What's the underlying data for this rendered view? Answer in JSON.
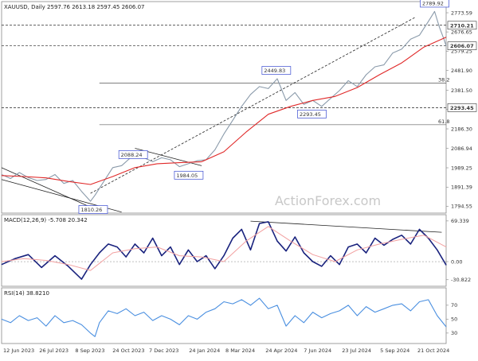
{
  "chart_data": [
    {
      "type": "line",
      "panel": "price",
      "title": "XAUUSD, Daily  2597.76 2613.18 2597.45 2606.07",
      "watermark": "ActionForex.com",
      "ylim": [
        1760,
        2830
      ],
      "y_ticks": [
        "2773.59",
        "2676.65",
        "2579.25",
        "2481.90",
        "2381.50",
        "2284.05",
        "2186.30",
        "2086.94",
        "1989.25",
        "1891.39",
        "1794.55"
      ],
      "y_tick_values": [
        2773.59,
        2676.65,
        2579.25,
        2481.9,
        2381.5,
        2284.05,
        2186.3,
        2086.94,
        1989.25,
        1891.39,
        1794.55
      ],
      "price_tags": [
        {
          "label": "2710.21",
          "value": 2710.21
        },
        {
          "label": "2606.07",
          "value": 2606.07
        },
        {
          "label": "2293.45",
          "value": 2293.45
        }
      ],
      "fib_levels": [
        {
          "label": "38.2",
          "value": 2417
        },
        {
          "label": "61.8",
          "value": 2207
        }
      ],
      "annotations": [
        {
          "label": "2789.92",
          "x": 97.4,
          "value": 2789.92
        },
        {
          "label": "2449.83",
          "x": 61.8,
          "value": 2449.83
        },
        {
          "label": "2293.45",
          "x": 69.8,
          "value": 2293.45
        },
        {
          "label": "2088.24",
          "x": 29.6,
          "value": 2088.24
        },
        {
          "label": "1984.05",
          "x": 42.1,
          "value": 1984.05
        },
        {
          "label": "1810.26",
          "x": 20.6,
          "value": 1810.26
        }
      ],
      "series": [
        {
          "name": "Close",
          "color": "#8a9aaa",
          "x": [
            0,
            2,
            4,
            6,
            8,
            10,
            12,
            14,
            16,
            18,
            20,
            21,
            23,
            25,
            27,
            29,
            30,
            32,
            34,
            36,
            38,
            40,
            42,
            44,
            46,
            48,
            50,
            52,
            54,
            56,
            58,
            60,
            62,
            64,
            66,
            68,
            70,
            72,
            74,
            76,
            78,
            80,
            82,
            84,
            86,
            88,
            90,
            92,
            94,
            96,
            97.4,
            98.5,
            99.5,
            100
          ],
          "values": [
            1955,
            1935,
            1965,
            1940,
            1925,
            1930,
            1955,
            1910,
            1925,
            1870,
            1820,
            1850,
            1920,
            1990,
            2000,
            2040,
            2060,
            2040,
            2020,
            2040,
            2030,
            1995,
            2010,
            2025,
            2030,
            2080,
            2160,
            2230,
            2300,
            2360,
            2400,
            2390,
            2440,
            2330,
            2370,
            2310,
            2330,
            2300,
            2340,
            2380,
            2430,
            2400,
            2460,
            2500,
            2510,
            2570,
            2590,
            2640,
            2660,
            2730,
            2780,
            2700,
            2640,
            2606
          ]
        },
        {
          "name": "MA",
          "color": "#e02828",
          "x": [
            0,
            5,
            10,
            15,
            20,
            25,
            30,
            35,
            40,
            45,
            50,
            55,
            60,
            65,
            70,
            75,
            80,
            85,
            90,
            95,
            100
          ],
          "values": [
            1950,
            1945,
            1938,
            1920,
            1905,
            1945,
            1990,
            2010,
            2015,
            2020,
            2070,
            2170,
            2260,
            2300,
            2330,
            2350,
            2395,
            2460,
            2520,
            2600,
            2650
          ]
        }
      ],
      "trendlines": [
        {
          "x": [
            0,
            22
          ],
          "values": [
            1990,
            1770
          ]
        },
        {
          "x": [
            0,
            27
          ],
          "values": [
            1930,
            1765
          ]
        },
        {
          "x": [
            20,
            93
          ],
          "values": [
            1860,
            2750
          ]
        },
        {
          "x": [
            30,
            45
          ],
          "values": [
            2088,
            2000
          ]
        }
      ]
    },
    {
      "type": "line",
      "panel": "macd",
      "title": "MACD(12,26,9) -5.708 20.342",
      "ylim": [
        -42,
        80
      ],
      "y_ticks": [
        "69.339",
        "0.00",
        "-30.822"
      ],
      "y_tick_values": [
        69.339,
        0,
        -30.822
      ],
      "series": [
        {
          "name": "MACD",
          "color": "#1a237e",
          "x": [
            0,
            3,
            6,
            9,
            12,
            15,
            18,
            20,
            22,
            24,
            26,
            28,
            30,
            32,
            34,
            36,
            38,
            40,
            42,
            44,
            46,
            48,
            50,
            52,
            54,
            56,
            58,
            60,
            62,
            64,
            66,
            68,
            70,
            72,
            74,
            76,
            78,
            80,
            82,
            84,
            86,
            88,
            90,
            92,
            94,
            96,
            98,
            100
          ],
          "values": [
            -5,
            5,
            12,
            -10,
            10,
            -8,
            -30,
            -5,
            15,
            30,
            25,
            8,
            30,
            15,
            40,
            10,
            25,
            -5,
            20,
            0,
            10,
            -12,
            10,
            40,
            55,
            20,
            65,
            68,
            35,
            18,
            42,
            15,
            0,
            -8,
            10,
            -5,
            25,
            30,
            15,
            40,
            28,
            38,
            45,
            30,
            55,
            40,
            20,
            -6
          ]
        },
        {
          "name": "Signal",
          "color": "#f2a0a0",
          "x": [
            0,
            5,
            10,
            15,
            20,
            25,
            30,
            35,
            40,
            45,
            50,
            55,
            60,
            65,
            70,
            75,
            80,
            85,
            90,
            95,
            100
          ],
          "values": [
            0,
            5,
            2,
            -5,
            -15,
            15,
            22,
            25,
            10,
            8,
            0,
            35,
            60,
            35,
            12,
            0,
            20,
            30,
            38,
            45,
            25
          ]
        }
      ],
      "trendlines": [
        {
          "x": [
            56,
            99
          ],
          "values": [
            69,
            50
          ]
        }
      ]
    },
    {
      "type": "line",
      "panel": "rsi",
      "title": "RSI(14) 38.8210",
      "ylim": [
        15,
        95
      ],
      "y_ticks": [
        "70",
        "50",
        "30"
      ],
      "y_tick_values": [
        70,
        50,
        30
      ],
      "series": [
        {
          "name": "RSI",
          "color": "#4a8fe0",
          "x": [
            0,
            2,
            4,
            6,
            8,
            10,
            12,
            14,
            16,
            18,
            20,
            21,
            22,
            24,
            26,
            28,
            30,
            32,
            34,
            36,
            38,
            40,
            42,
            44,
            46,
            48,
            50,
            52,
            54,
            56,
            58,
            60,
            62,
            64,
            66,
            68,
            70,
            72,
            74,
            76,
            78,
            80,
            82,
            84,
            86,
            88,
            90,
            92,
            94,
            96,
            98,
            100
          ],
          "values": [
            50,
            45,
            55,
            48,
            52,
            40,
            55,
            45,
            48,
            42,
            30,
            25,
            45,
            62,
            58,
            65,
            55,
            60,
            48,
            55,
            50,
            42,
            55,
            50,
            60,
            65,
            75,
            72,
            78,
            70,
            80,
            65,
            70,
            40,
            55,
            45,
            60,
            52,
            58,
            62,
            70,
            55,
            68,
            60,
            65,
            70,
            72,
            62,
            75,
            78,
            55,
            39
          ]
        }
      ]
    }
  ],
  "x_axis": {
    "labels": [
      "12 Jun 2023",
      "26 Jul 2023",
      "8 Sep 2023",
      "24 Oct 2023",
      "7 Dec 2023",
      "24 Jan 2024",
      "8 Mar 2024",
      "24 Apr 2024",
      "7 Jun 2024",
      "23 Jul 2024",
      "5 Sep 2024",
      "21 Oct 2024"
    ],
    "positions": [
      0,
      8.1,
      16.2,
      24.6,
      32.8,
      41.8,
      50,
      59,
      67.6,
      76.2,
      84.8,
      93.2
    ]
  }
}
